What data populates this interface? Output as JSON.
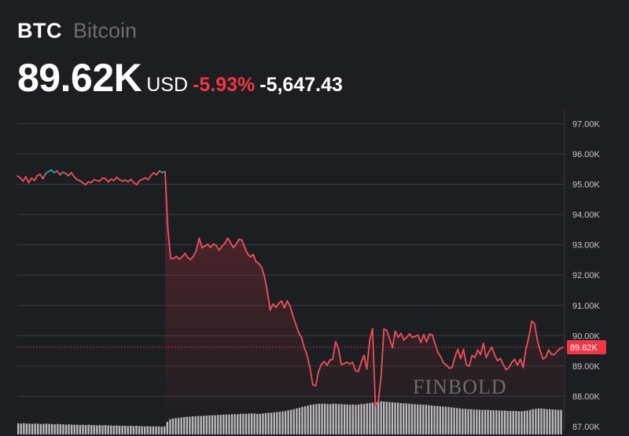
{
  "header": {
    "symbol": "BTC",
    "name": "Bitcoin",
    "price": "89.62K",
    "currency": "USD",
    "change_pct": "-5.93%",
    "change_abs": "-5,647.43"
  },
  "watermark": "FINBOLD",
  "colors": {
    "background": "#1d1e22",
    "negative": "#f23645",
    "positive": "#26a69a",
    "line": "#f0505a",
    "grid": "#3a3b40",
    "axis_text": "#c8c9cc",
    "volume": "#c9c9cc",
    "price_label_bg": "#f23645"
  },
  "chart_data": {
    "type": "area",
    "y_axis": {
      "position": "right",
      "ticks": [
        "97.00K",
        "96.00K",
        "95.00K",
        "94.00K",
        "93.00K",
        "92.00K",
        "91.00K",
        "90.00K",
        "89.00K",
        "88.00K",
        "87.00K"
      ],
      "ylim": [
        86.95,
        97.45
      ],
      "grid": true
    },
    "current_price_label": "89.62K",
    "current_price": 89.62,
    "series": [
      {
        "values": [
          95.27,
          95.22,
          95.1,
          95.25,
          95.05,
          95.2,
          95.12,
          95.28,
          95.33,
          95.18,
          95.35,
          95.42,
          95.47,
          95.38,
          95.44,
          95.31,
          95.4,
          95.36,
          95.28,
          95.38,
          95.25,
          95.15,
          95.12,
          95.05,
          94.98,
          95.08,
          95.05,
          95.15,
          95.12,
          95.1,
          95.2,
          95.18,
          95.08,
          95.17,
          95.12,
          95.23,
          95.15,
          95.1,
          95.14,
          95.08,
          95.16,
          95.05,
          94.98,
          95.12,
          95.16,
          95.21,
          95.15,
          95.28,
          95.38,
          95.31,
          95.44,
          95.38,
          95.42,
          93.5,
          92.55,
          92.55,
          92.62,
          92.52,
          92.6,
          92.72,
          92.58,
          92.51,
          92.63,
          92.82,
          93.22,
          92.9,
          92.96,
          93.02,
          92.91,
          93.03,
          92.98,
          92.82,
          92.95,
          93.05,
          93.22,
          93.08,
          92.91,
          93.02,
          93.18,
          93.16,
          92.92,
          92.71,
          92.6,
          92.68,
          92.45,
          92.38,
          92.25,
          91.94,
          91.45,
          90.85,
          91.05,
          90.93,
          91.07,
          91.15,
          90.92,
          91.15,
          90.98,
          90.65,
          90.38,
          90.11,
          89.95,
          89.6,
          89.35,
          88.93,
          88.38,
          88.35,
          88.82,
          89.05,
          89.15,
          89.02,
          89.2,
          89.22,
          89.8,
          89.58,
          89.05,
          89.08,
          89.13,
          89.07,
          89.12,
          88.85,
          88.82,
          89.12,
          89.35,
          88.9,
          89.85,
          90.23,
          87.7,
          87.82,
          88.65,
          90.22,
          90.18,
          89.9,
          89.6,
          90.15,
          89.95,
          90.08,
          89.86,
          89.95,
          90.06,
          89.94,
          89.98,
          90.02,
          89.78,
          90.04,
          89.79,
          90.05,
          90.03,
          89.73,
          89.45,
          89.3,
          89.1,
          89.03,
          88.93,
          88.95,
          89.3,
          89.55,
          89.25,
          89.55,
          89.05,
          88.99,
          89.35,
          89.28,
          89.53,
          89.38,
          89.75,
          89.28,
          89.48,
          89.62,
          89.35,
          89.18,
          89.25,
          89.05,
          88.88,
          88.95,
          89.12,
          89.22,
          89.03,
          89.23,
          88.95,
          89.58,
          89.95,
          90.48,
          90.4,
          89.85,
          89.5,
          89.23,
          89.3,
          89.53,
          89.38,
          89.38,
          89.5,
          89.58,
          89.62
        ],
        "positive_until_index": 52
      }
    ],
    "volume": [
      0.31,
      0.3,
      0.31,
      0.3,
      0.3,
      0.29,
      0.3,
      0.3,
      0.29,
      0.29,
      0.3,
      0.29,
      0.29,
      0.28,
      0.29,
      0.28,
      0.28,
      0.27,
      0.28,
      0.27,
      0.27,
      0.27,
      0.26,
      0.27,
      0.26,
      0.27,
      0.26,
      0.26,
      0.25,
      0.26,
      0.25,
      0.26,
      0.25,
      0.25,
      0.24,
      0.25,
      0.24,
      0.24,
      0.24,
      0.23,
      0.24,
      0.23,
      0.24,
      0.23,
      0.23,
      0.22,
      0.23,
      0.22,
      0.22,
      0.22,
      0.22,
      0.21,
      0.22,
      0.35,
      0.42,
      0.44,
      0.45,
      0.46,
      0.47,
      0.48,
      0.49,
      0.49,
      0.5,
      0.5,
      0.51,
      0.51,
      0.52,
      0.52,
      0.53,
      0.53,
      0.53,
      0.54,
      0.54,
      0.55,
      0.55,
      0.55,
      0.56,
      0.56,
      0.56,
      0.57,
      0.57,
      0.57,
      0.58,
      0.58,
      0.58,
      0.57,
      0.57,
      0.58,
      0.59,
      0.6,
      0.6,
      0.61,
      0.62,
      0.63,
      0.64,
      0.65,
      0.67,
      0.68,
      0.7,
      0.72,
      0.74,
      0.76,
      0.78,
      0.8,
      0.82,
      0.83,
      0.84,
      0.85,
      0.85,
      0.85,
      0.84,
      0.84,
      0.85,
      0.85,
      0.84,
      0.84,
      0.83,
      0.83,
      0.82,
      0.83,
      0.82,
      0.83,
      0.84,
      0.84,
      0.86,
      0.87,
      0.88,
      0.89,
      0.9,
      0.92,
      0.91,
      0.9,
      0.9,
      0.89,
      0.88,
      0.88,
      0.87,
      0.86,
      0.86,
      0.85,
      0.84,
      0.84,
      0.83,
      0.83,
      0.82,
      0.82,
      0.81,
      0.8,
      0.79,
      0.79,
      0.78,
      0.77,
      0.77,
      0.76,
      0.75,
      0.74,
      0.73,
      0.72,
      0.71,
      0.71,
      0.7,
      0.7,
      0.69,
      0.69,
      0.68,
      0.68,
      0.68,
      0.68,
      0.67,
      0.67,
      0.67,
      0.66,
      0.66,
      0.66,
      0.65,
      0.65,
      0.65,
      0.65,
      0.64,
      0.64,
      0.65,
      0.66,
      0.68,
      0.7,
      0.71,
      0.72,
      0.72,
      0.71,
      0.7,
      0.7,
      0.69,
      0.69,
      0.68,
      0.68
    ]
  }
}
